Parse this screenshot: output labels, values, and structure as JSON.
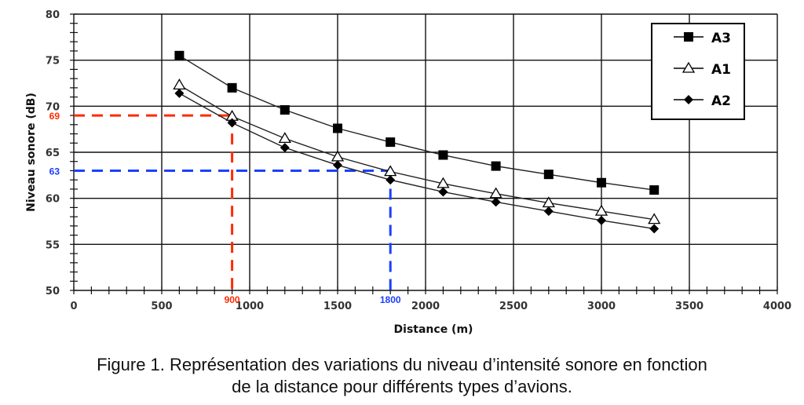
{
  "chart_data": {
    "type": "line",
    "title": "",
    "xlabel": "Distance (m)",
    "ylabel": "Niveau sonore (dB)",
    "xlim": [
      0,
      4000
    ],
    "ylim": [
      50,
      80
    ],
    "xticks": [
      "0",
      "500",
      "1000",
      "1500",
      "2000",
      "2500",
      "3000",
      "3500",
      "4000"
    ],
    "yticks": [
      "50",
      "55",
      "60",
      "65",
      "70",
      "75",
      "80"
    ],
    "grid": true,
    "legend_position": "top-right",
    "x": [
      600,
      900,
      1200,
      1500,
      1800,
      2100,
      2400,
      2700,
      3000,
      3300
    ],
    "series": [
      {
        "name": "A3",
        "marker": "square",
        "values": [
          75.5,
          72.0,
          69.6,
          67.6,
          66.1,
          64.7,
          63.5,
          62.6,
          61.7,
          60.9
        ]
      },
      {
        "name": "A1",
        "marker": "triangle-open",
        "values": [
          72.3,
          68.9,
          66.5,
          64.5,
          62.9,
          61.6,
          60.5,
          59.5,
          58.6,
          57.7
        ]
      },
      {
        "name": "A2",
        "marker": "diamond",
        "values": [
          71.4,
          68.2,
          65.5,
          63.6,
          62.0,
          60.7,
          59.6,
          58.6,
          57.6,
          56.7
        ]
      }
    ],
    "annotations": [
      {
        "label_y": "69",
        "label_x": "900",
        "y": 69,
        "x": 900,
        "color": "#ff2a00"
      },
      {
        "label_y": "63",
        "label_x": "1800",
        "y": 63,
        "x": 1800,
        "color": "#1a3fff"
      }
    ]
  },
  "caption": {
    "line1": "Figure 1. Représentation des variations du niveau d’intensité sonore en fonction",
    "line2": "de la distance pour différents types d’avions."
  }
}
